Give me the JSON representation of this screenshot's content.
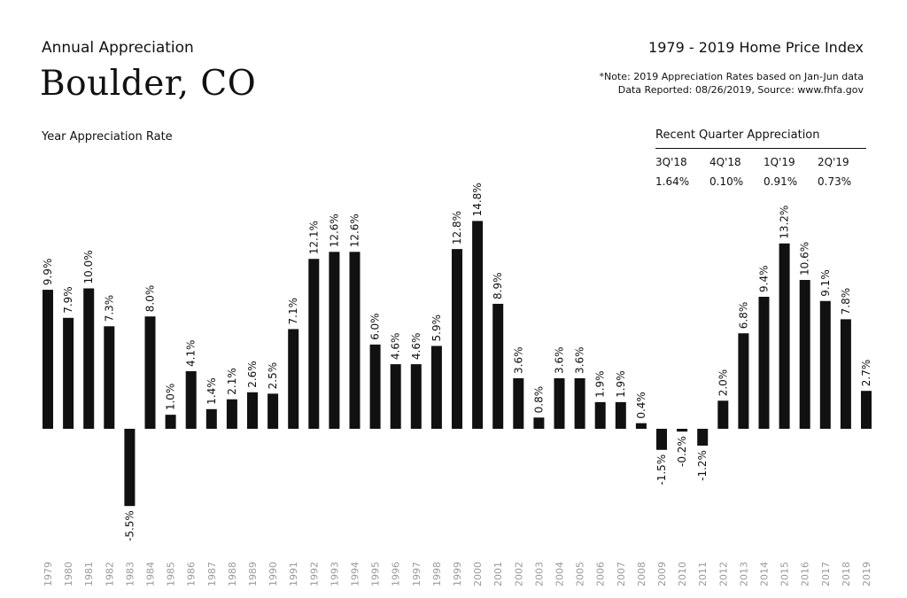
{
  "header": {
    "subtitle": "Annual Appreciation",
    "title": "Boulder, CO",
    "index_title": "1979 - 2019 Home Price Index",
    "note_line1": "*Note: 2019 Appreciation Rates based on Jan-Jun data",
    "note_line2": "Data Reported: 08/26/2019, Source: www.fhfa.gov"
  },
  "recent_quarter": {
    "heading": "Recent Quarter Appreciation",
    "quarters": [
      "3Q'18",
      "4Q'18",
      "1Q'19",
      "2Q'19"
    ],
    "values": [
      "1.64%",
      "0.10%",
      "0.91%",
      "0.73%"
    ]
  },
  "chart_data": {
    "type": "bar",
    "ylabel": "Year Appreciation Rate",
    "categories": [
      "1979",
      "1980",
      "1981",
      "1982",
      "1983",
      "1984",
      "1985",
      "1986",
      "1987",
      "1988",
      "1989",
      "1990",
      "1991",
      "1992",
      "1993",
      "1994",
      "1995",
      "1996",
      "1997",
      "1998",
      "1999",
      "2000",
      "2001",
      "2002",
      "2003",
      "2004",
      "2005",
      "2006",
      "2007",
      "2008",
      "2009",
      "2010",
      "2011",
      "2012",
      "2013",
      "2014",
      "2015",
      "2016",
      "2017",
      "2018",
      "2019"
    ],
    "values": [
      9.9,
      7.9,
      10.0,
      7.3,
      -5.5,
      8.0,
      1.0,
      4.1,
      1.4,
      2.1,
      2.6,
      2.5,
      7.1,
      12.1,
      12.6,
      12.6,
      6.0,
      4.6,
      4.6,
      5.9,
      12.8,
      14.8,
      8.9,
      3.6,
      0.8,
      3.6,
      3.6,
      1.9,
      1.9,
      0.4,
      -1.5,
      -0.2,
      -1.2,
      2.0,
      6.8,
      9.4,
      13.2,
      10.6,
      9.1,
      7.8,
      2.7
    ],
    "labels": [
      "9.9%",
      "7.9%",
      "10.0%",
      "7.3%",
      "-5.5%",
      "8.0%",
      "1.0%",
      "4.1%",
      "1.4%",
      "2.1%",
      "2.6%",
      "2.5%",
      "7.1%",
      "12.1%",
      "12.6%",
      "12.6%",
      "6.0%",
      "4.6%",
      "4.6%",
      "5.9%",
      "12.8%",
      "14.8%",
      "8.9%",
      "3.6%",
      "0.8%",
      "3.6%",
      "3.6%",
      "1.9%",
      "1.9%",
      "0.4%",
      "-1.5%",
      "-0.2%",
      "-1.2%",
      "2.0%",
      "6.8%",
      "9.4%",
      "13.2%",
      "10.6%",
      "9.1%",
      "7.8%",
      "2.7%"
    ],
    "bar_color": "#111111",
    "year_label_color": "#9a9a9a",
    "ylim": [
      -8,
      16
    ],
    "grid": false
  }
}
